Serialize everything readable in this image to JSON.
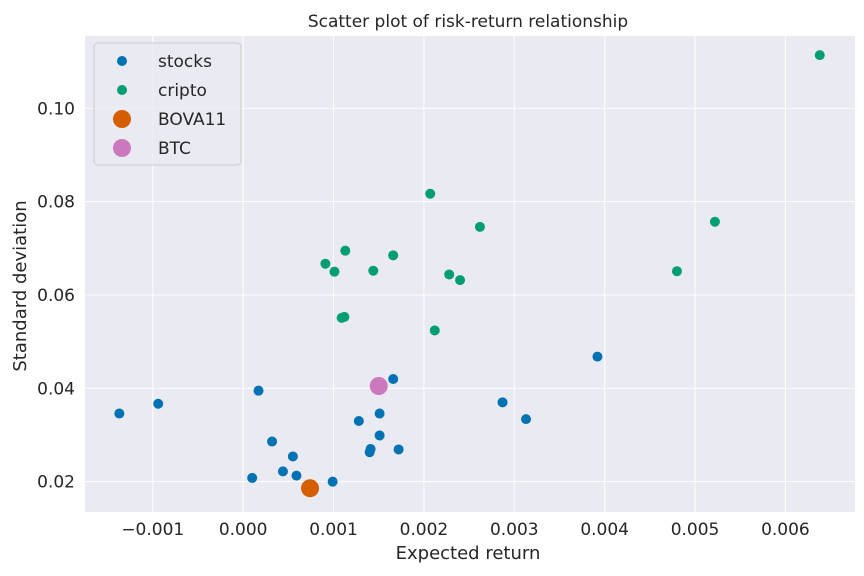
{
  "chart_data": {
    "type": "scatter",
    "title": "Scatter plot of risk-return relationship",
    "xlabel": "Expected return",
    "ylabel": "Standard deviation",
    "xlim": [
      -0.00175,
      0.00677
    ],
    "ylim": [
      0.0135,
      0.1155
    ],
    "xticks": [
      -0.001,
      0.0,
      0.001,
      0.002,
      0.003,
      0.004,
      0.005,
      0.006
    ],
    "xtick_labels": [
      "−0.001",
      "0.000",
      "0.001",
      "0.002",
      "0.003",
      "0.004",
      "0.005",
      "0.006"
    ],
    "yticks": [
      0.02,
      0.04,
      0.06,
      0.08,
      0.1
    ],
    "ytick_labels": [
      "0.02",
      "0.04",
      "0.06",
      "0.08",
      "0.10"
    ],
    "grid": true,
    "legend_position": "top-left",
    "series": [
      {
        "name": "stocks",
        "color": "#0173b2",
        "marker": "small",
        "points": [
          [
            -0.00137,
            0.0346
          ],
          [
            -0.00094,
            0.0367
          ],
          [
            0.0001,
            0.0208
          ],
          [
            0.00017,
            0.0395
          ],
          [
            0.00032,
            0.0286
          ],
          [
            0.00044,
            0.0222
          ],
          [
            0.00055,
            0.0254
          ],
          [
            0.00059,
            0.0213
          ],
          [
            0.00099,
            0.02
          ],
          [
            0.00128,
            0.033
          ],
          [
            0.0014,
            0.0263
          ],
          [
            0.00141,
            0.027
          ],
          [
            0.00151,
            0.0299
          ],
          [
            0.00151,
            0.0346
          ],
          [
            0.00166,
            0.042
          ],
          [
            0.00172,
            0.0269
          ],
          [
            0.00287,
            0.037
          ],
          [
            0.00313,
            0.0334
          ],
          [
            0.00392,
            0.0468
          ]
        ]
      },
      {
        "name": "cripto",
        "color": "#029e73",
        "marker": "small",
        "points": [
          [
            0.00091,
            0.0667
          ],
          [
            0.00101,
            0.065
          ],
          [
            0.00109,
            0.0551
          ],
          [
            0.00112,
            0.0553
          ],
          [
            0.00113,
            0.0695
          ],
          [
            0.00144,
            0.0652
          ],
          [
            0.00166,
            0.0685
          ],
          [
            0.00207,
            0.0817
          ],
          [
            0.00212,
            0.0524
          ],
          [
            0.00228,
            0.0644
          ],
          [
            0.0024,
            0.0632
          ],
          [
            0.00262,
            0.0746
          ],
          [
            0.0048,
            0.0651
          ],
          [
            0.00522,
            0.0757
          ],
          [
            0.00638,
            0.1114
          ]
        ]
      },
      {
        "name": "BOVA11",
        "color": "#d55e00",
        "marker": "large",
        "points": [
          [
            0.00074,
            0.0186
          ]
        ]
      },
      {
        "name": "BTC",
        "color": "#cc78bc",
        "marker": "large",
        "points": [
          [
            0.0015,
            0.0405
          ]
        ]
      }
    ]
  }
}
